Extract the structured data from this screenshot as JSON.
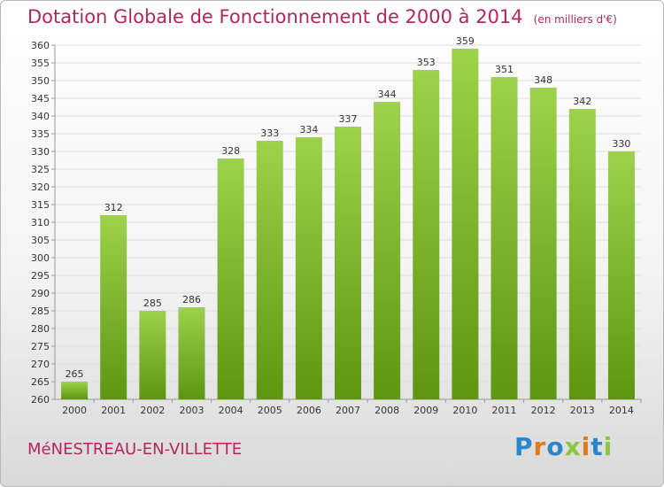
{
  "header": {
    "title": "Dotation Globale de Fonctionnement de 2000 à 2014",
    "unit": "(en milliers d'€)"
  },
  "footer": {
    "town": "MéNESTREAU-EN-VILLETTE",
    "logo": "Proxiti"
  },
  "colors": {
    "title": "#b5265e",
    "bar_top": "#9dd24a",
    "bar_bottom": "#5e9610",
    "grid": "#dddddd"
  },
  "chart_data": {
    "type": "bar",
    "title": "Dotation Globale de Fonctionnement de 2000 à 2014",
    "subtitle": "(en milliers d'€)",
    "xlabel": "",
    "ylabel": "",
    "categories": [
      "2000",
      "2001",
      "2002",
      "2003",
      "2004",
      "2005",
      "2006",
      "2007",
      "2008",
      "2009",
      "2010",
      "2011",
      "2012",
      "2013",
      "2014"
    ],
    "values": [
      265,
      312,
      285,
      286,
      328,
      333,
      334,
      337,
      344,
      353,
      359,
      351,
      348,
      342,
      330
    ],
    "ylim": [
      260,
      360
    ],
    "ytick_step": 5,
    "grid": true,
    "legend": "none"
  }
}
